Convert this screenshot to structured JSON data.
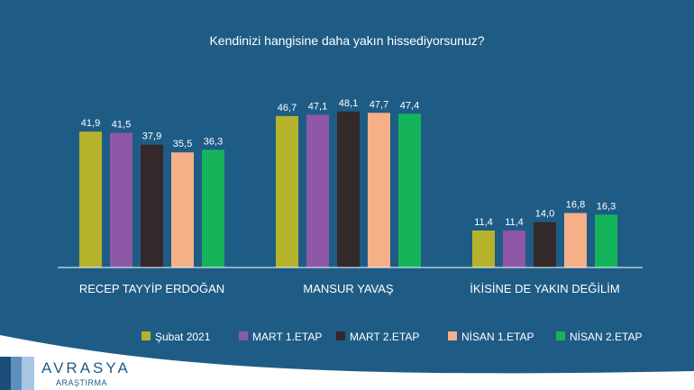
{
  "colors": {
    "background": "#1f5c85",
    "text": "#ffffff",
    "baseline": "#ffffff"
  },
  "logo": {
    "name": "AVRASYA",
    "sub": "ARAŞTIRMA",
    "colors": [
      "#1c4f78",
      "#5f8fbf",
      "#a7c6e6"
    ]
  },
  "chart_data": {
    "type": "bar",
    "title": "Kendinizi hangisine daha yakın hissediyorsunuz?",
    "categories": [
      "RECEP TAYYİP ERDOĞAN",
      "MANSUR YAVAŞ",
      "İKİSİNE DE YAKIN DEĞİLİM"
    ],
    "series": [
      {
        "name": "Şubat 2021",
        "color": "#b5b32c",
        "values": [
          41.9,
          46.7,
          11.4
        ]
      },
      {
        "name": "MART 1.ETAP",
        "color": "#8e58a6",
        "values": [
          41.5,
          47.1,
          11.4
        ]
      },
      {
        "name": "MART 2.ETAP",
        "color": "#33292b",
        "values": [
          37.9,
          48.1,
          14.0
        ]
      },
      {
        "name": "NİSAN 1.ETAP",
        "color": "#f5b088",
        "values": [
          35.5,
          47.7,
          16.8
        ]
      },
      {
        "name": "NİSAN 2.ETAP",
        "color": "#15b45a",
        "values": [
          36.3,
          47.4,
          16.3
        ]
      }
    ],
    "value_labels": [
      [
        "41,9",
        "46,7",
        "11,4"
      ],
      [
        "41,5",
        "47,1",
        "11,4"
      ],
      [
        "37,9",
        "48,1",
        "14,0"
      ],
      [
        "35,5",
        "47,7",
        "16,8"
      ],
      [
        "36,3",
        "47,4",
        "16,3"
      ]
    ],
    "ylim": [
      0,
      50
    ],
    "grid": false,
    "legend_position": "bottom"
  }
}
